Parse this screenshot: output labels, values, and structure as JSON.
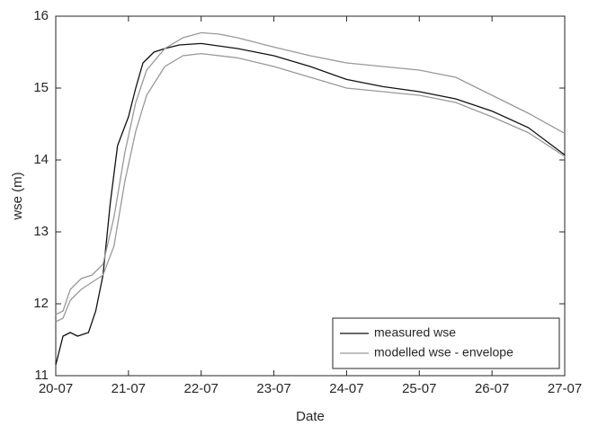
{
  "chart_data": {
    "type": "line",
    "x_label": "Date",
    "y_label": "wse (m)",
    "xlim": [
      20,
      27
    ],
    "xticks": [
      {
        "value": 20,
        "label": "20-07"
      },
      {
        "value": 21,
        "label": "21-07"
      },
      {
        "value": 22,
        "label": "22-07"
      },
      {
        "value": 23,
        "label": "23-07"
      },
      {
        "value": 24,
        "label": "24-07"
      },
      {
        "value": 25,
        "label": "25-07"
      },
      {
        "value": 26,
        "label": "26-07"
      },
      {
        "value": 27,
        "label": "27-07"
      }
    ],
    "ylim": [
      11,
      16
    ],
    "yticks": [
      11,
      12,
      13,
      14,
      15,
      16
    ],
    "legend": "lower right",
    "series": [
      {
        "name": "measured wse",
        "color": "#111111",
        "x": [
          20.0,
          20.1,
          20.2,
          20.3,
          20.45,
          20.55,
          20.65,
          20.75,
          20.85,
          21.0,
          21.1,
          21.2,
          21.35,
          21.5,
          21.7,
          22.0,
          22.5,
          23.0,
          23.5,
          24.0,
          24.5,
          25.0,
          25.5,
          26.0,
          26.5,
          27.0
        ],
        "values": [
          11.15,
          11.55,
          11.6,
          11.55,
          11.6,
          11.9,
          12.4,
          13.4,
          14.2,
          14.6,
          15.0,
          15.35,
          15.5,
          15.55,
          15.6,
          15.62,
          15.55,
          15.45,
          15.3,
          15.12,
          15.02,
          14.95,
          14.85,
          14.68,
          14.45,
          14.07
        ]
      },
      {
        "name": "modelled wse - envelope",
        "color": "#999999",
        "x": [
          20.0,
          20.1,
          20.2,
          20.35,
          20.5,
          20.65,
          20.8,
          20.95,
          21.1,
          21.25,
          21.5,
          21.75,
          22.0,
          22.25,
          22.5,
          23.0,
          23.5,
          24.0,
          24.5,
          25.0,
          25.5,
          26.0,
          26.5,
          27.0
        ],
        "values": [
          11.85,
          11.9,
          12.2,
          12.35,
          12.4,
          12.55,
          13.2,
          14.1,
          14.8,
          15.25,
          15.55,
          15.7,
          15.77,
          15.75,
          15.7,
          15.57,
          15.45,
          15.35,
          15.3,
          15.25,
          15.15,
          14.9,
          14.65,
          14.37
        ]
      },
      {
        "color": "#999999",
        "x": [
          20.0,
          20.1,
          20.2,
          20.35,
          20.5,
          20.65,
          20.8,
          20.95,
          21.1,
          21.25,
          21.5,
          21.75,
          22.0,
          22.5,
          23.0,
          23.5,
          24.0,
          24.5,
          25.0,
          25.5,
          26.0,
          26.5,
          27.0
        ],
        "values": [
          11.75,
          11.8,
          12.05,
          12.2,
          12.3,
          12.4,
          12.8,
          13.7,
          14.4,
          14.9,
          15.3,
          15.45,
          15.48,
          15.42,
          15.3,
          15.15,
          15.0,
          14.95,
          14.9,
          14.8,
          14.6,
          14.38,
          14.05
        ]
      }
    ]
  }
}
